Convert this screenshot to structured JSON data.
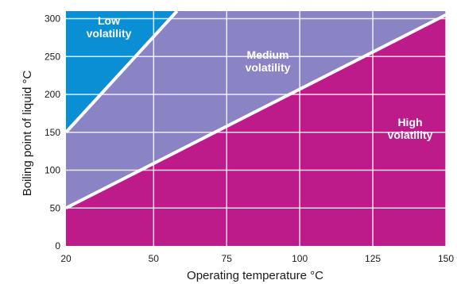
{
  "chart_data": {
    "type": "area",
    "xlabel": "Operating temperature °C",
    "ylabel": "Boiling point of liquid °C",
    "xlim": [
      20,
      150
    ],
    "ylim": [
      0,
      310
    ],
    "x_ticks": [
      20,
      50,
      75,
      100,
      125,
      150
    ],
    "y_ticks": [
      0,
      50,
      100,
      150,
      200,
      250,
      300
    ],
    "grid": true,
    "boundaries": [
      {
        "x": [
          20,
          58
        ],
        "y": [
          150,
          310
        ]
      },
      {
        "x": [
          20,
          150
        ],
        "y": [
          50,
          305
        ]
      }
    ],
    "regions": [
      {
        "lines": [
          "Low",
          "volatility"
        ],
        "color": "#0a8fd4"
      },
      {
        "lines": [
          "Medium",
          "volatility"
        ],
        "color": "#8a84c4"
      },
      {
        "lines": [
          "High",
          "volatility"
        ],
        "color": "#bd1a8a"
      }
    ]
  }
}
